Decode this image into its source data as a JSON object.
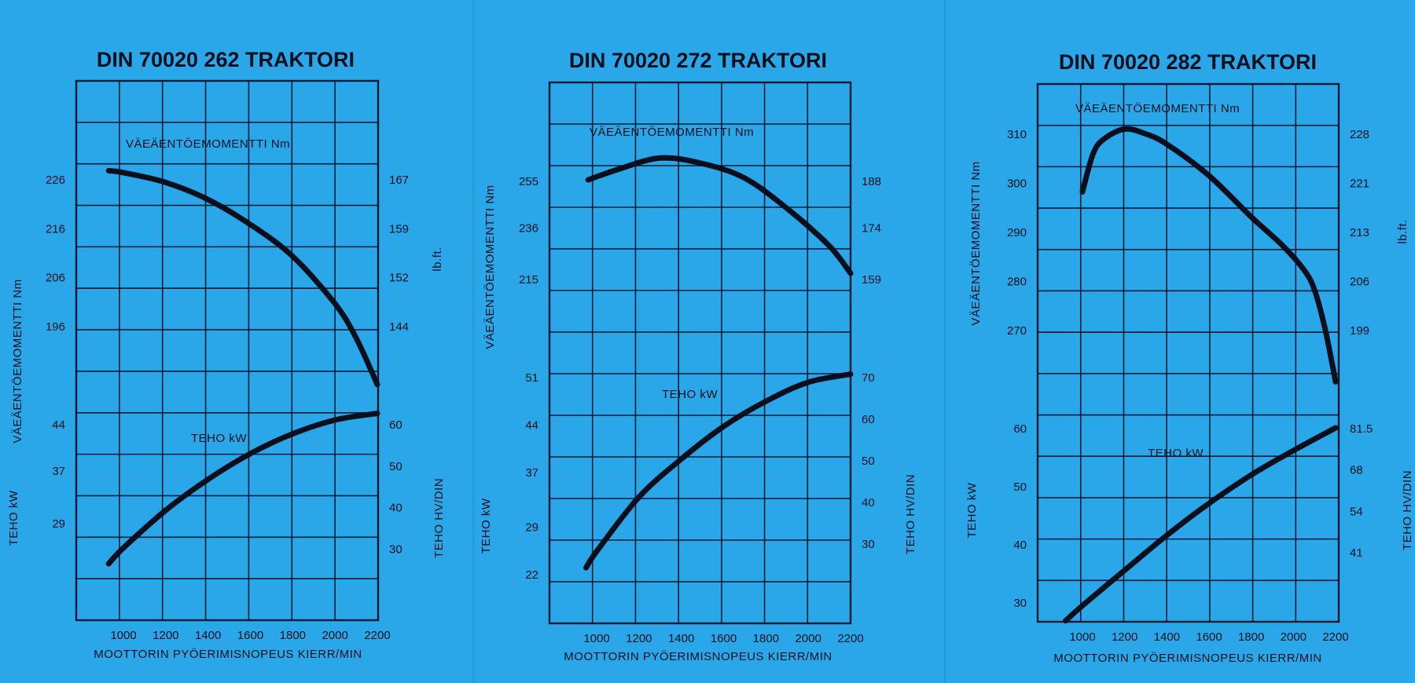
{
  "chart_data": [
    {
      "type": "line",
      "title": "DIN 70020 262 TRAKTORI",
      "xlabel": "MOOTTORIN PYÖERIMISNOPEUS KIERR/MIN",
      "x_ticks": [
        1000,
        1200,
        1400,
        1600,
        1800,
        2000,
        2200
      ],
      "left_torque_label": "VÄEÄENTÖEMOMENTTI Nm",
      "left_power_label": "TEHO kW",
      "right_torque_label": "lb.ft.",
      "right_power_label": "TEHO HV/DIN",
      "torque_left_ticks": [
        "226",
        "216",
        "206",
        "196"
      ],
      "torque_right_ticks": [
        "167",
        "159",
        "152",
        "144"
      ],
      "power_left_ticks": [
        "44",
        "37",
        "29"
      ],
      "power_right_ticks": [
        "60",
        "50",
        "40",
        "30"
      ],
      "torque_curve_label": "VÄEÄENTÖEMOMENTTI Nm",
      "power_curve_label": "TEHO kW",
      "torque_unit_ticks": [
        226,
        216,
        206,
        196
      ],
      "power_unit_ticks": [
        44,
        37,
        29
      ],
      "series": [
        {
          "name": "VÄEÄENTÖEMOMENTTI Nm",
          "x": [
            930,
            1000,
            1200,
            1400,
            1600,
            1800,
            2000,
            2100,
            2200
          ],
          "y": [
            227.7,
            227.3,
            225.3,
            221.8,
            216.7,
            210.2,
            200.5,
            193.5,
            184.0
          ]
        },
        {
          "name": "TEHO kW",
          "x": [
            930,
            1000,
            1200,
            1400,
            1600,
            1800,
            2000,
            2200
          ],
          "y": [
            22.8,
            25.2,
            30.9,
            35.6,
            39.5,
            42.5,
            44.6,
            45.6
          ]
        }
      ]
    },
    {
      "type": "line",
      "title": "DIN 70020 272 TRAKTORI",
      "xlabel": "MOOTTORIN PYÖERIMISNOPEUS KIERR/MIN",
      "x_ticks": [
        1000,
        1200,
        1400,
        1600,
        1800,
        2000,
        2200
      ],
      "left_torque_label": "VÄEÄENTÖEMOMENTTI Nm",
      "left_power_label": "TEHO kW",
      "right_torque_label": "",
      "right_power_label": "TEHO HV/DIN",
      "torque_left_ticks": [
        "255",
        "236",
        "215"
      ],
      "torque_right_ticks": [
        "188",
        "174",
        "159"
      ],
      "power_left_ticks": [
        "51",
        "44",
        "37",
        "29",
        "22"
      ],
      "power_right_ticks": [
        "70",
        "60",
        "50",
        "40",
        "30"
      ],
      "torque_curve_label": "VÄEÄENTÖEMOMENTTI Nm",
      "power_curve_label": "TEHO kW",
      "torque_unit_ticks": [
        255,
        236,
        215
      ],
      "power_unit_ticks": [
        51,
        44,
        37,
        29,
        22
      ],
      "series": [
        {
          "name": "VÄEÄENTÖEMOMENTTI Nm",
          "x": [
            960,
            1100,
            1300,
            1500,
            1700,
            1900,
            2100,
            2200
          ],
          "y": [
            255.3,
            259.5,
            264.2,
            261.9,
            256.0,
            243.6,
            228.3,
            217.2
          ]
        },
        {
          "name": "TEHO kW",
          "x": [
            950,
            1000,
            1200,
            1400,
            1600,
            1800,
            2000,
            2200
          ],
          "y": [
            22.9,
            25.3,
            33.3,
            38.9,
            43.7,
            47.4,
            50.2,
            51.4
          ]
        }
      ]
    },
    {
      "type": "line",
      "title": "DIN 70020 282 TRAKTORI",
      "xlabel": "MOOTTORIN PYÖERIMISNOPEUS KIERR/MIN",
      "x_ticks": [
        1000,
        1200,
        1400,
        1600,
        1800,
        2000,
        2200
      ],
      "left_torque_label": "VÄEÄENTÖEMOMENTTI Nm",
      "left_power_label": "TEHO kW",
      "right_torque_label": "lb.ft.",
      "right_power_label": "TEHO HV/DIN",
      "torque_left_ticks": [
        "310",
        "300",
        "290",
        "280",
        "270"
      ],
      "torque_right_ticks": [
        "228",
        "221",
        "213",
        "206",
        "199"
      ],
      "power_left_ticks": [
        "60",
        "50",
        "40",
        "30"
      ],
      "power_right_ticks": [
        "81.5",
        "68",
        "54",
        "41"
      ],
      "torque_curve_label": "VÄEÄENTÖEMOMENTTI Nm",
      "power_curve_label": "TEHO kW",
      "torque_unit_ticks": [
        310,
        300,
        290,
        280,
        270
      ],
      "power_unit_ticks": [
        60,
        50,
        40,
        30
      ],
      "series": [
        {
          "name": "VÄEÄENTÖEMOMENTTI Nm",
          "x": [
            1000,
            1050,
            1100,
            1200,
            1300,
            1400,
            1600,
            1800,
            1950,
            2050,
            2100,
            2150,
            2200
          ],
          "y": [
            298.1,
            305.8,
            308.8,
            310.9,
            309.9,
            307.8,
            301.4,
            293.0,
            287.1,
            282.2,
            278.1,
            270.2,
            259.4
          ]
        },
        {
          "name": "TEHO kW",
          "x": [
            920,
            1000,
            1200,
            1400,
            1600,
            1800,
            2000,
            2200
          ],
          "y": [
            26.8,
            29.4,
            35.5,
            41.5,
            47.0,
            51.9,
            56.1,
            60.0
          ]
        }
      ]
    }
  ]
}
